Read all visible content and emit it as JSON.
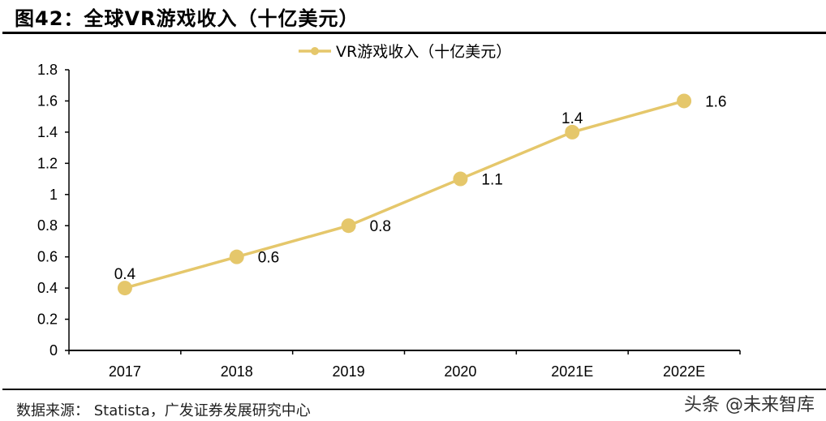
{
  "title": "图42：全球VR游戏收入（十亿美元）",
  "source": "数据来源：  Statista，广发证券发展研究中心",
  "watermark": "头条 @未来智库",
  "chart_data": {
    "type": "line",
    "title": "",
    "xlabel": "",
    "ylabel": "",
    "categories": [
      "2017",
      "2018",
      "2019",
      "2020",
      "2021E",
      "2022E"
    ],
    "series": [
      {
        "name": "VR游戏收入（十亿美元）",
        "values": [
          0.4,
          0.6,
          0.8,
          1.1,
          1.4,
          1.6
        ],
        "color": "#E5C76B"
      }
    ],
    "data_labels": [
      "0.4",
      "0.6",
      "0.8",
      "1.1",
      "1.4",
      "1.6"
    ],
    "ylim": [
      0,
      1.8
    ],
    "yticks": [
      "0",
      "0.2",
      "0.4",
      "0.6",
      "0.8",
      "1",
      "1.2",
      "1.4",
      "1.6",
      "1.8"
    ],
    "grid": false,
    "legend": "top-center"
  }
}
